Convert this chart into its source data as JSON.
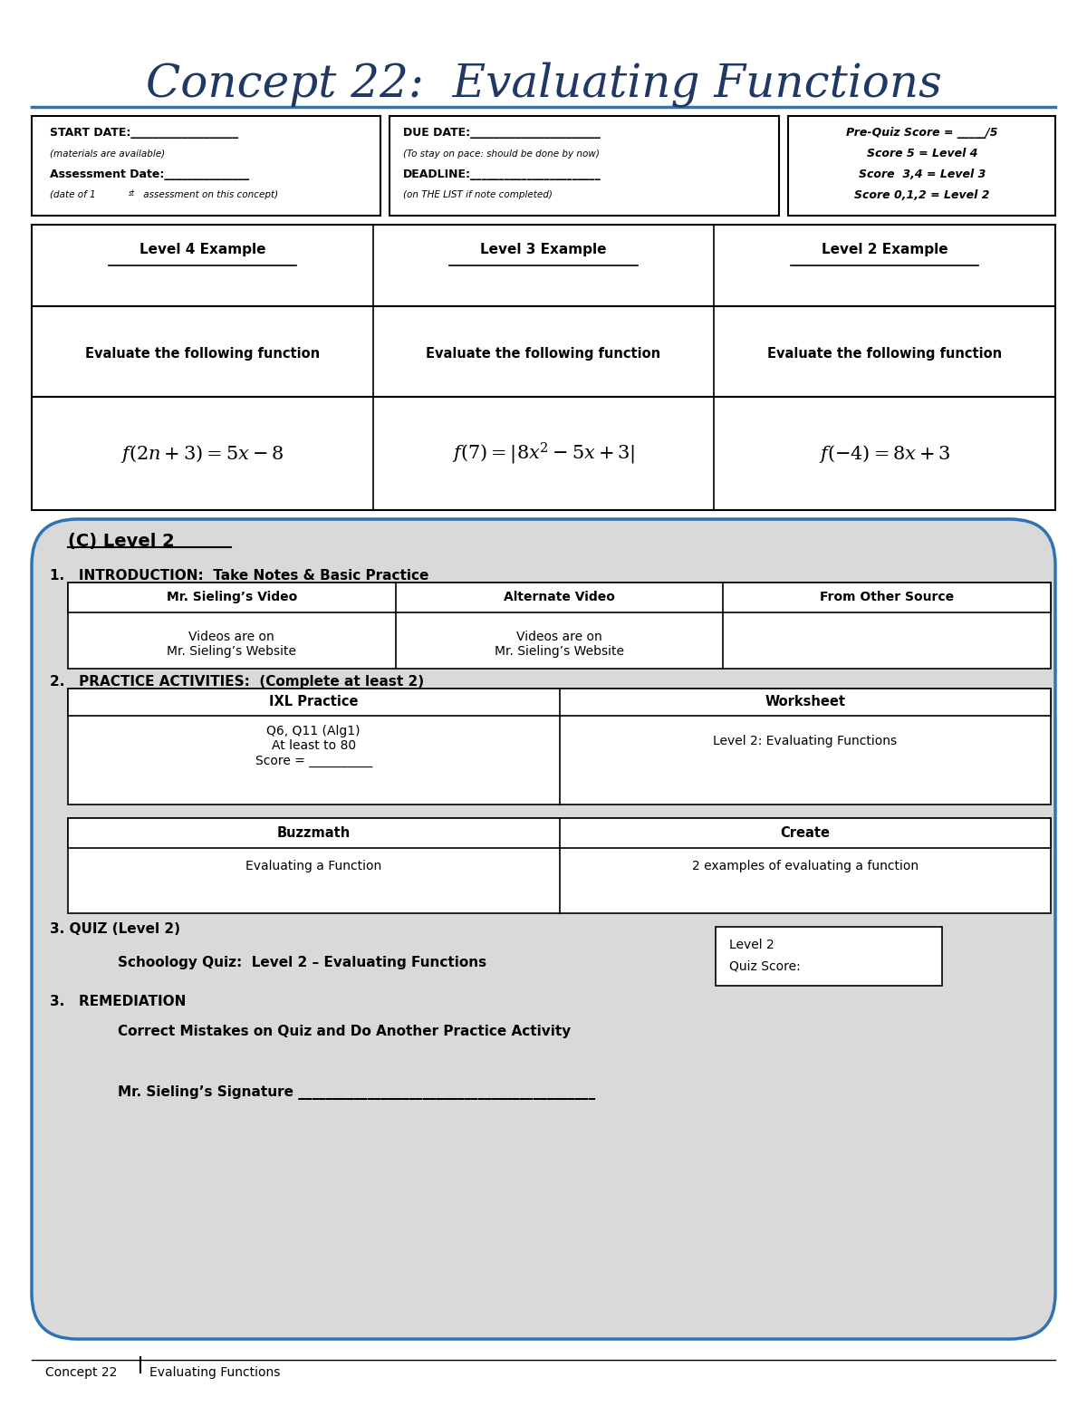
{
  "title": "Concept 22:  Evaluating Functions",
  "title_color": "#1F3864",
  "title_fontsize": 36,
  "bg_color": "#FFFFFF",
  "header_line_color": "#2E74B5",
  "example_headers": [
    "Level 4 Example",
    "Level 3 Example",
    "Level 2 Example"
  ],
  "example_subheaders": [
    "Evaluate the following function",
    "Evaluate the following function",
    "Evaluate the following function"
  ],
  "video_table_headers": [
    "Mr. Sieling’s Video",
    "Alternate Video",
    "From Other Source"
  ],
  "practice_table1_headers": [
    "IXL Practice",
    "Worksheet"
  ],
  "practice_table2_headers": [
    "Buzzmath",
    "Create"
  ],
  "quiz_label": "3. QUIZ (Level 2)",
  "quiz_text": "Schoology Quiz:  Level 2 – Evaluating Functions",
  "quiz_score_box": [
    "Level 2",
    "Quiz Score:"
  ],
  "remediation_label": "3.   REMEDIATION",
  "remediation_text": "Correct Mistakes on Quiz and Do Another Practice Activity",
  "signature_text": "Mr. Sieling’s Signature ___________________________________________",
  "footer_text": "Concept 22",
  "footer_text2": "Evaluating Functions",
  "level2_border": "#2E74B5",
  "level2_bg": "#D9D9D9"
}
